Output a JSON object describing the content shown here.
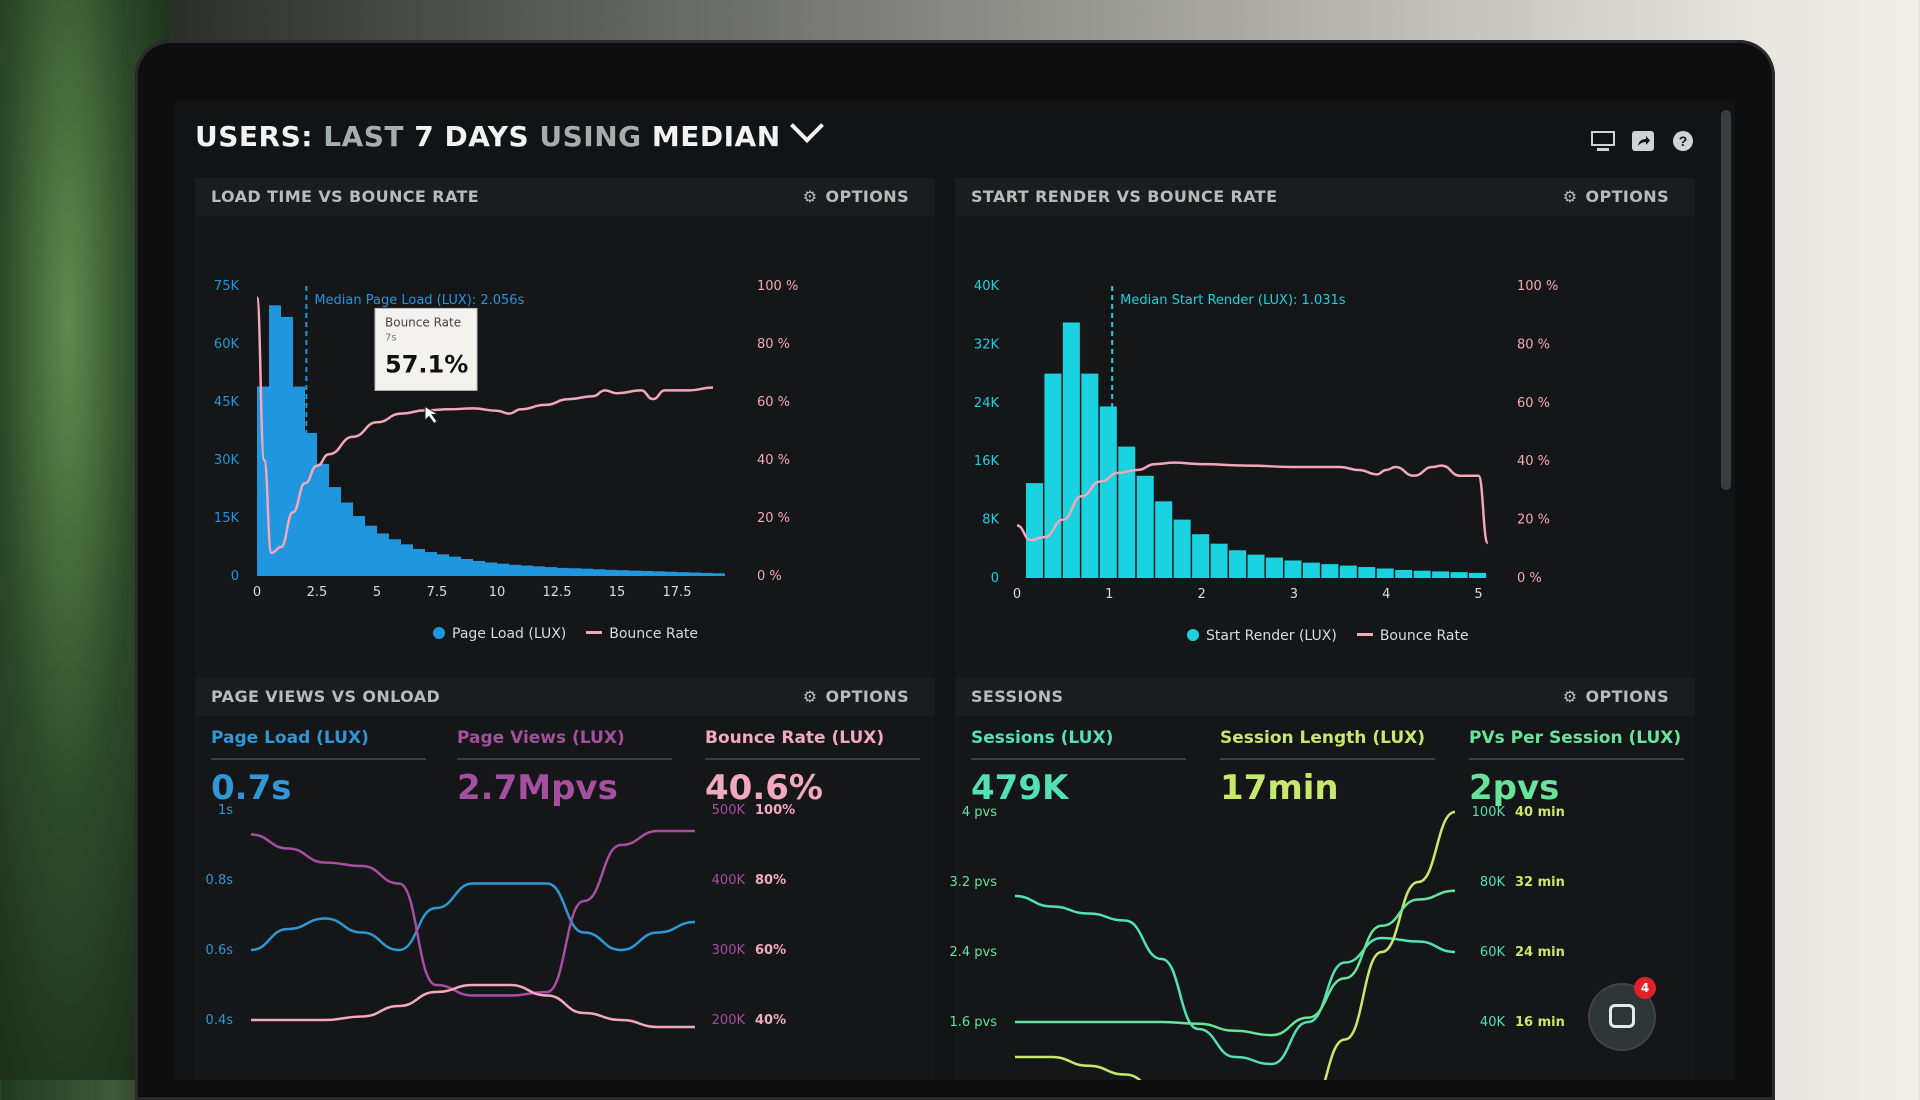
{
  "dashboard": {
    "title_parts": [
      {
        "text": "USERS: ",
        "style": "w"
      },
      {
        "text": "LAST ",
        "style": "g"
      },
      {
        "text": "7 DAYS ",
        "style": "w"
      },
      {
        "text": "USING ",
        "style": "g"
      },
      {
        "text": "MEDIAN",
        "style": "w"
      }
    ],
    "icons": [
      "monitor-icon",
      "share-icon",
      "help-icon"
    ]
  },
  "panels": {
    "load": {
      "title": "LOAD TIME VS BOUNCE RATE",
      "options": "OPTIONS",
      "legend": [
        "Page Load (LUX)",
        "Bounce Rate"
      ]
    },
    "render": {
      "title": "START RENDER VS BOUNCE RATE",
      "options": "OPTIONS",
      "legend": [
        "Start Render (LUX)",
        "Bounce Rate"
      ]
    },
    "pageviews": {
      "title": "PAGE VIEWS VS ONLOAD",
      "options": "OPTIONS"
    },
    "sessions": {
      "title": "SESSIONS",
      "options": "OPTIONS"
    }
  },
  "kpis": {
    "page_load": {
      "label": "Page Load (LUX)",
      "value": "0.7s",
      "color": "#2f97d6"
    },
    "page_views": {
      "label": "Page Views (LUX)",
      "value": "2.7Mpvs",
      "color": "#a44fa0"
    },
    "bounce_rate": {
      "label": "Bounce Rate (LUX)",
      "value": "40.6%",
      "color": "#f1a9bf"
    },
    "sessions": {
      "label": "Sessions (LUX)",
      "value": "479K",
      "color": "#52e0b4"
    },
    "session_length": {
      "label": "Session Length (LUX)",
      "value": "17min",
      "color": "#c6e86c"
    },
    "pvs_per_session": {
      "label": "PVs Per Session (LUX)",
      "value": "2pvs",
      "color": "#69e39a"
    }
  },
  "chat": {
    "badge": "4"
  },
  "chart_data": [
    {
      "id": "load_time_vs_bounce",
      "type": "bar",
      "title": "LOAD TIME VS BOUNCE RATE",
      "x_ticks": [
        "0",
        "2.5",
        "5",
        "7.5",
        "10",
        "12.5",
        "15",
        "17.5"
      ],
      "xlim": [
        0,
        20
      ],
      "y_left_ticks": [
        "75K",
        "60K",
        "45K",
        "30K",
        "15K",
        "0"
      ],
      "ylim_left": [
        0,
        75000
      ],
      "y_right_ticks": [
        "100 %",
        "80 %",
        "60 %",
        "40 %",
        "20 %",
        "0 %"
      ],
      "ylim_right": [
        0,
        100
      ],
      "bar_color": "#1f96de",
      "line_color": "#f3a7b8",
      "series": [
        {
          "name": "Page Load (LUX)",
          "axis": "left",
          "x": [
            0,
            0.5,
            1,
            1.5,
            2,
            2.5,
            3,
            3.5,
            4,
            4.5,
            5,
            5.5,
            6,
            6.5,
            7,
            7.5,
            8,
            8.5,
            9,
            9.5,
            10,
            10.5,
            11,
            11.5,
            12,
            12.5,
            13,
            13.5,
            14,
            14.5,
            15,
            15.5,
            16,
            16.5,
            17,
            17.5,
            18,
            18.5,
            19
          ],
          "values": [
            49000,
            70000,
            67000,
            49000,
            37000,
            29000,
            23000,
            19000,
            15500,
            13000,
            11000,
            9500,
            8200,
            7000,
            6200,
            5600,
            5000,
            4400,
            3900,
            3500,
            3200,
            2900,
            2700,
            2500,
            2300,
            2100,
            2000,
            1900,
            1750,
            1600,
            1500,
            1400,
            1300,
            1200,
            1100,
            1000,
            900,
            800,
            700
          ]
        },
        {
          "name": "Bounce Rate",
          "axis": "right",
          "x": [
            0,
            0.3,
            0.6,
            1,
            1.5,
            2,
            2.5,
            3,
            4,
            5,
            6,
            7,
            8,
            9,
            10,
            10.5,
            11,
            12,
            13,
            14,
            14.5,
            15,
            16,
            16.5,
            17,
            18,
            19
          ],
          "values": [
            96,
            40,
            8,
            10,
            22,
            32,
            38,
            42,
            48,
            53,
            56,
            57.1,
            57.5,
            57.8,
            57,
            56,
            57.5,
            59,
            61,
            62,
            64,
            63,
            64,
            61,
            64,
            64,
            65
          ]
        }
      ],
      "annotations": [
        {
          "text": "Median Page Load (LUX): 2.056s",
          "x": 2.056
        },
        {
          "tooltip_title": "Bounce Rate",
          "tooltip_sub": "7s",
          "tooltip_value": "57.1%",
          "x": 7,
          "y": 57.1
        }
      ]
    },
    {
      "id": "start_render_vs_bounce",
      "type": "bar",
      "title": "START RENDER VS BOUNCE RATE",
      "x_ticks": [
        "0",
        "1",
        "2",
        "3",
        "4",
        "5"
      ],
      "xlim": [
        0,
        5.2
      ],
      "y_left_ticks": [
        "40K",
        "32K",
        "24K",
        "16K",
        "8K",
        "0"
      ],
      "ylim_left": [
        0,
        40000
      ],
      "y_right_ticks": [
        "100 %",
        "80 %",
        "60 %",
        "40 %",
        "20 %",
        "0 %"
      ],
      "ylim_right": [
        0,
        100
      ],
      "bar_color": "#1ad2e0",
      "line_color": "#f3a7b8",
      "series": [
        {
          "name": "Start Render (LUX)",
          "axis": "left",
          "x": [
            0.2,
            0.4,
            0.6,
            0.8,
            1.0,
            1.2,
            1.4,
            1.6,
            1.8,
            2.0,
            2.2,
            2.4,
            2.6,
            2.8,
            3.0,
            3.2,
            3.4,
            3.6,
            3.8,
            4.0,
            4.2,
            4.4,
            4.6,
            4.8,
            5.0
          ],
          "values": [
            13000,
            28000,
            35000,
            28000,
            23500,
            18000,
            14000,
            10500,
            8000,
            6000,
            4700,
            3800,
            3200,
            2800,
            2400,
            2100,
            1900,
            1700,
            1500,
            1300,
            1100,
            1000,
            900,
            800,
            700
          ]
        },
        {
          "name": "Bounce Rate",
          "axis": "right",
          "x": [
            0,
            0.15,
            0.3,
            0.5,
            0.7,
            0.9,
            1.1,
            1.3,
            1.5,
            1.7,
            2,
            2.5,
            3,
            3.5,
            3.7,
            3.9,
            4,
            4.1,
            4.3,
            4.5,
            4.6,
            4.8,
            5,
            5.1
          ],
          "values": [
            18,
            13,
            14,
            20,
            28,
            33,
            36,
            37,
            39,
            39.5,
            39,
            38.5,
            38,
            38,
            37,
            35.5,
            37,
            38,
            35,
            38,
            38.5,
            35,
            35,
            12
          ]
        }
      ],
      "annotations": [
        {
          "text": "Median Start Render (LUX): 1.031s",
          "x": 1.031
        }
      ]
    },
    {
      "id": "page_views_vs_onload",
      "type": "line",
      "title": "PAGE VIEWS VS ONLOAD",
      "y_left_ticks": [
        "1s",
        "0.8s",
        "0.6s",
        "0.4s"
      ],
      "ylim_left": [
        0.4,
        1
      ],
      "y_right_ticks_1": [
        "500K",
        "400K",
        "300K",
        "200K"
      ],
      "y_right_ticks_2": [
        "100%",
        "80%",
        "60%",
        "40%"
      ],
      "series": [
        {
          "name": "Page Load (LUX)",
          "color": "#2f97d6",
          "axis": "seconds",
          "x": [
            0,
            1,
            2,
            3,
            4,
            5,
            6,
            7,
            8,
            9,
            10,
            11,
            12
          ],
          "values": [
            0.6,
            0.66,
            0.69,
            0.65,
            0.6,
            0.72,
            0.79,
            0.79,
            0.79,
            0.65,
            0.6,
            0.65,
            0.68
          ]
        },
        {
          "name": "Page Views (LUX)",
          "color": "#a44fa0",
          "axis": "pageviews",
          "x": [
            0,
            1,
            2,
            3,
            4,
            5,
            6,
            7,
            8,
            9,
            10,
            11,
            12
          ],
          "values": [
            465000,
            445000,
            425000,
            420000,
            395000,
            250000,
            235000,
            235000,
            240000,
            370000,
            450000,
            470000,
            470000
          ]
        },
        {
          "name": "Bounce Rate (LUX)",
          "color": "#f1a9bf",
          "axis": "percent",
          "x": [
            0,
            1,
            2,
            3,
            4,
            5,
            6,
            7,
            8,
            9,
            10,
            11,
            12
          ],
          "values": [
            40,
            40,
            40,
            41,
            44,
            48,
            50,
            50,
            47,
            42,
            40,
            38,
            38
          ]
        }
      ]
    },
    {
      "id": "sessions",
      "type": "line",
      "title": "SESSIONS",
      "y_left_ticks": [
        "4 pvs",
        "3.2 pvs",
        "2.4 pvs",
        "1.6 pvs"
      ],
      "y_right_ticks_1": [
        "100K",
        "80K",
        "60K",
        "40K"
      ],
      "y_right_ticks_2": [
        "40 min",
        "32 min",
        "24 min",
        "16 min"
      ],
      "series": [
        {
          "name": "Sessions (LUX)",
          "color": "#52e0b4",
          "axis": "sessions",
          "x": [
            0,
            1,
            2,
            3,
            4,
            5,
            6,
            7,
            8,
            9,
            10,
            11,
            12
          ],
          "values": [
            76000,
            73000,
            71000,
            69000,
            58000,
            38000,
            30000,
            28000,
            40000,
            57000,
            64000,
            63000,
            60000
          ]
        },
        {
          "name": "Session Length (LUX)",
          "color": "#c6e86c",
          "axis": "minutes",
          "x": [
            0,
            1,
            2,
            3,
            4,
            5,
            6,
            7,
            8,
            9,
            10,
            11,
            12
          ],
          "values": [
            12,
            12,
            11,
            10,
            8,
            5,
            3,
            3,
            6,
            14,
            24,
            32,
            40
          ]
        },
        {
          "name": "PVs Per Session (LUX)",
          "color": "#69e39a",
          "axis": "pvs",
          "x": [
            0,
            1,
            2,
            3,
            4,
            5,
            6,
            7,
            8,
            9,
            10,
            11,
            12
          ],
          "values": [
            1.6,
            1.6,
            1.6,
            1.6,
            1.6,
            1.58,
            1.5,
            1.45,
            1.65,
            2.1,
            2.7,
            3.0,
            3.1
          ]
        }
      ]
    }
  ]
}
